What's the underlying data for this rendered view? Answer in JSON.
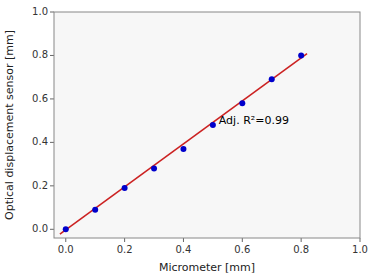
{
  "chart_data": {
    "type": "scatter",
    "xlabel": "Micrometer [mm]",
    "ylabel": "Optical displacement sensor [mm]",
    "series": [
      {
        "type": "line",
        "color": "#cc2222",
        "x": [
          -0.02,
          0.82
        ],
        "values": [
          -0.02176,
          0.80816
        ]
      },
      {
        "type": "scatter",
        "color": "#0000cc",
        "x": [
          0.0,
          0.1,
          0.2,
          0.3,
          0.4,
          0.5,
          0.6,
          0.7,
          0.8
        ],
        "values": [
          0.0,
          0.09,
          0.19,
          0.28,
          0.37,
          0.48,
          0.58,
          0.69,
          0.8
        ]
      }
    ],
    "annotations": [
      {
        "text": "Adj. R²=0.99",
        "x": 0.52,
        "y": 0.5
      }
    ],
    "xlim": [
      -0.04,
      1.0
    ],
    "ylim": [
      -0.04,
      1.0
    ],
    "xticks": [
      {
        "value": 0.0,
        "label": "0.0"
      },
      0.2,
      0.4,
      0.6,
      0.8,
      {
        "value": 1.0,
        "label": "1.0"
      }
    ],
    "yticks": [
      {
        "value": 0.0,
        "label": "0.0"
      },
      0.2,
      0.4,
      0.6,
      0.8,
      {
        "value": 1.0,
        "label": "1.0"
      }
    ],
    "grid": false
  }
}
